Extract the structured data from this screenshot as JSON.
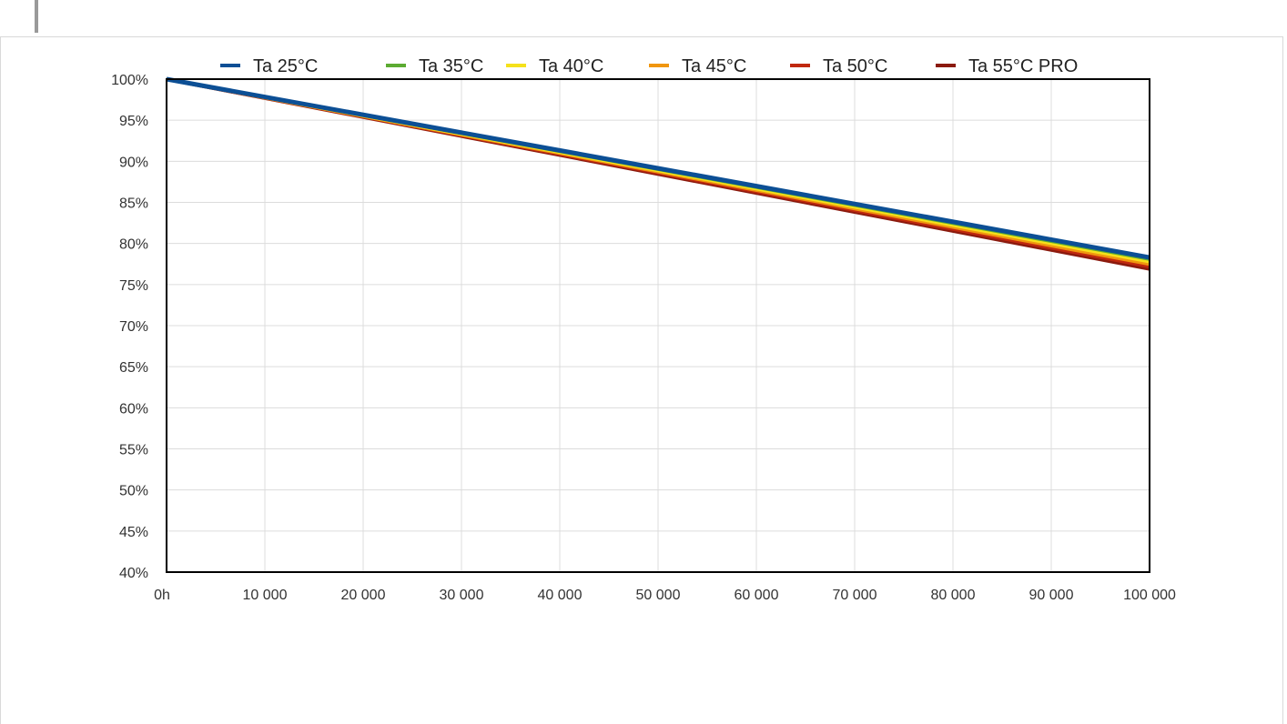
{
  "chart_data": {
    "type": "line",
    "title": "",
    "xlabel": "",
    "ylabel": "",
    "x": [
      0,
      100000
    ],
    "xlim": [
      0,
      100000
    ],
    "ylim": [
      40,
      100
    ],
    "x_ticks": [
      0,
      10000,
      20000,
      30000,
      40000,
      50000,
      60000,
      70000,
      80000,
      90000,
      100000
    ],
    "x_tick_labels": [
      "0h",
      "10 000",
      "20 000",
      "30 000",
      "40 000",
      "50 000",
      "60 000",
      "70 000",
      "80 000",
      "90 000",
      "100 000"
    ],
    "y_ticks": [
      40,
      45,
      50,
      55,
      60,
      65,
      70,
      75,
      80,
      85,
      90,
      95,
      100
    ],
    "y_tick_labels": [
      "40%",
      "45%",
      "50%",
      "55%",
      "60%",
      "65%",
      "70%",
      "75%",
      "80%",
      "85%",
      "90%",
      "95%",
      "100%"
    ],
    "grid": true,
    "legend_position": "top",
    "series": [
      {
        "name": "Ta 55°C PRO",
        "color": "#8b1a0e",
        "values": [
          100,
          76.9
        ]
      },
      {
        "name": "Ta 50°C",
        "color": "#c0280e",
        "values": [
          100,
          77.2
        ]
      },
      {
        "name": "Ta 45°C",
        "color": "#f0960f",
        "values": [
          100,
          77.5
        ]
      },
      {
        "name": "Ta 40°C",
        "color": "#f5e11b",
        "values": [
          100,
          77.8
        ]
      },
      {
        "name": "Ta 35°C",
        "color": "#5cab32",
        "values": [
          100,
          78.1
        ]
      },
      {
        "name": "Ta 25°C",
        "color": "#0c4f95",
        "values": [
          100,
          78.3
        ]
      }
    ],
    "legend_order": [
      "Ta 25°C",
      "Ta 35°C",
      "Ta 40°C",
      "Ta 45°C",
      "Ta 50°C",
      "Ta 55°C PRO"
    ]
  }
}
